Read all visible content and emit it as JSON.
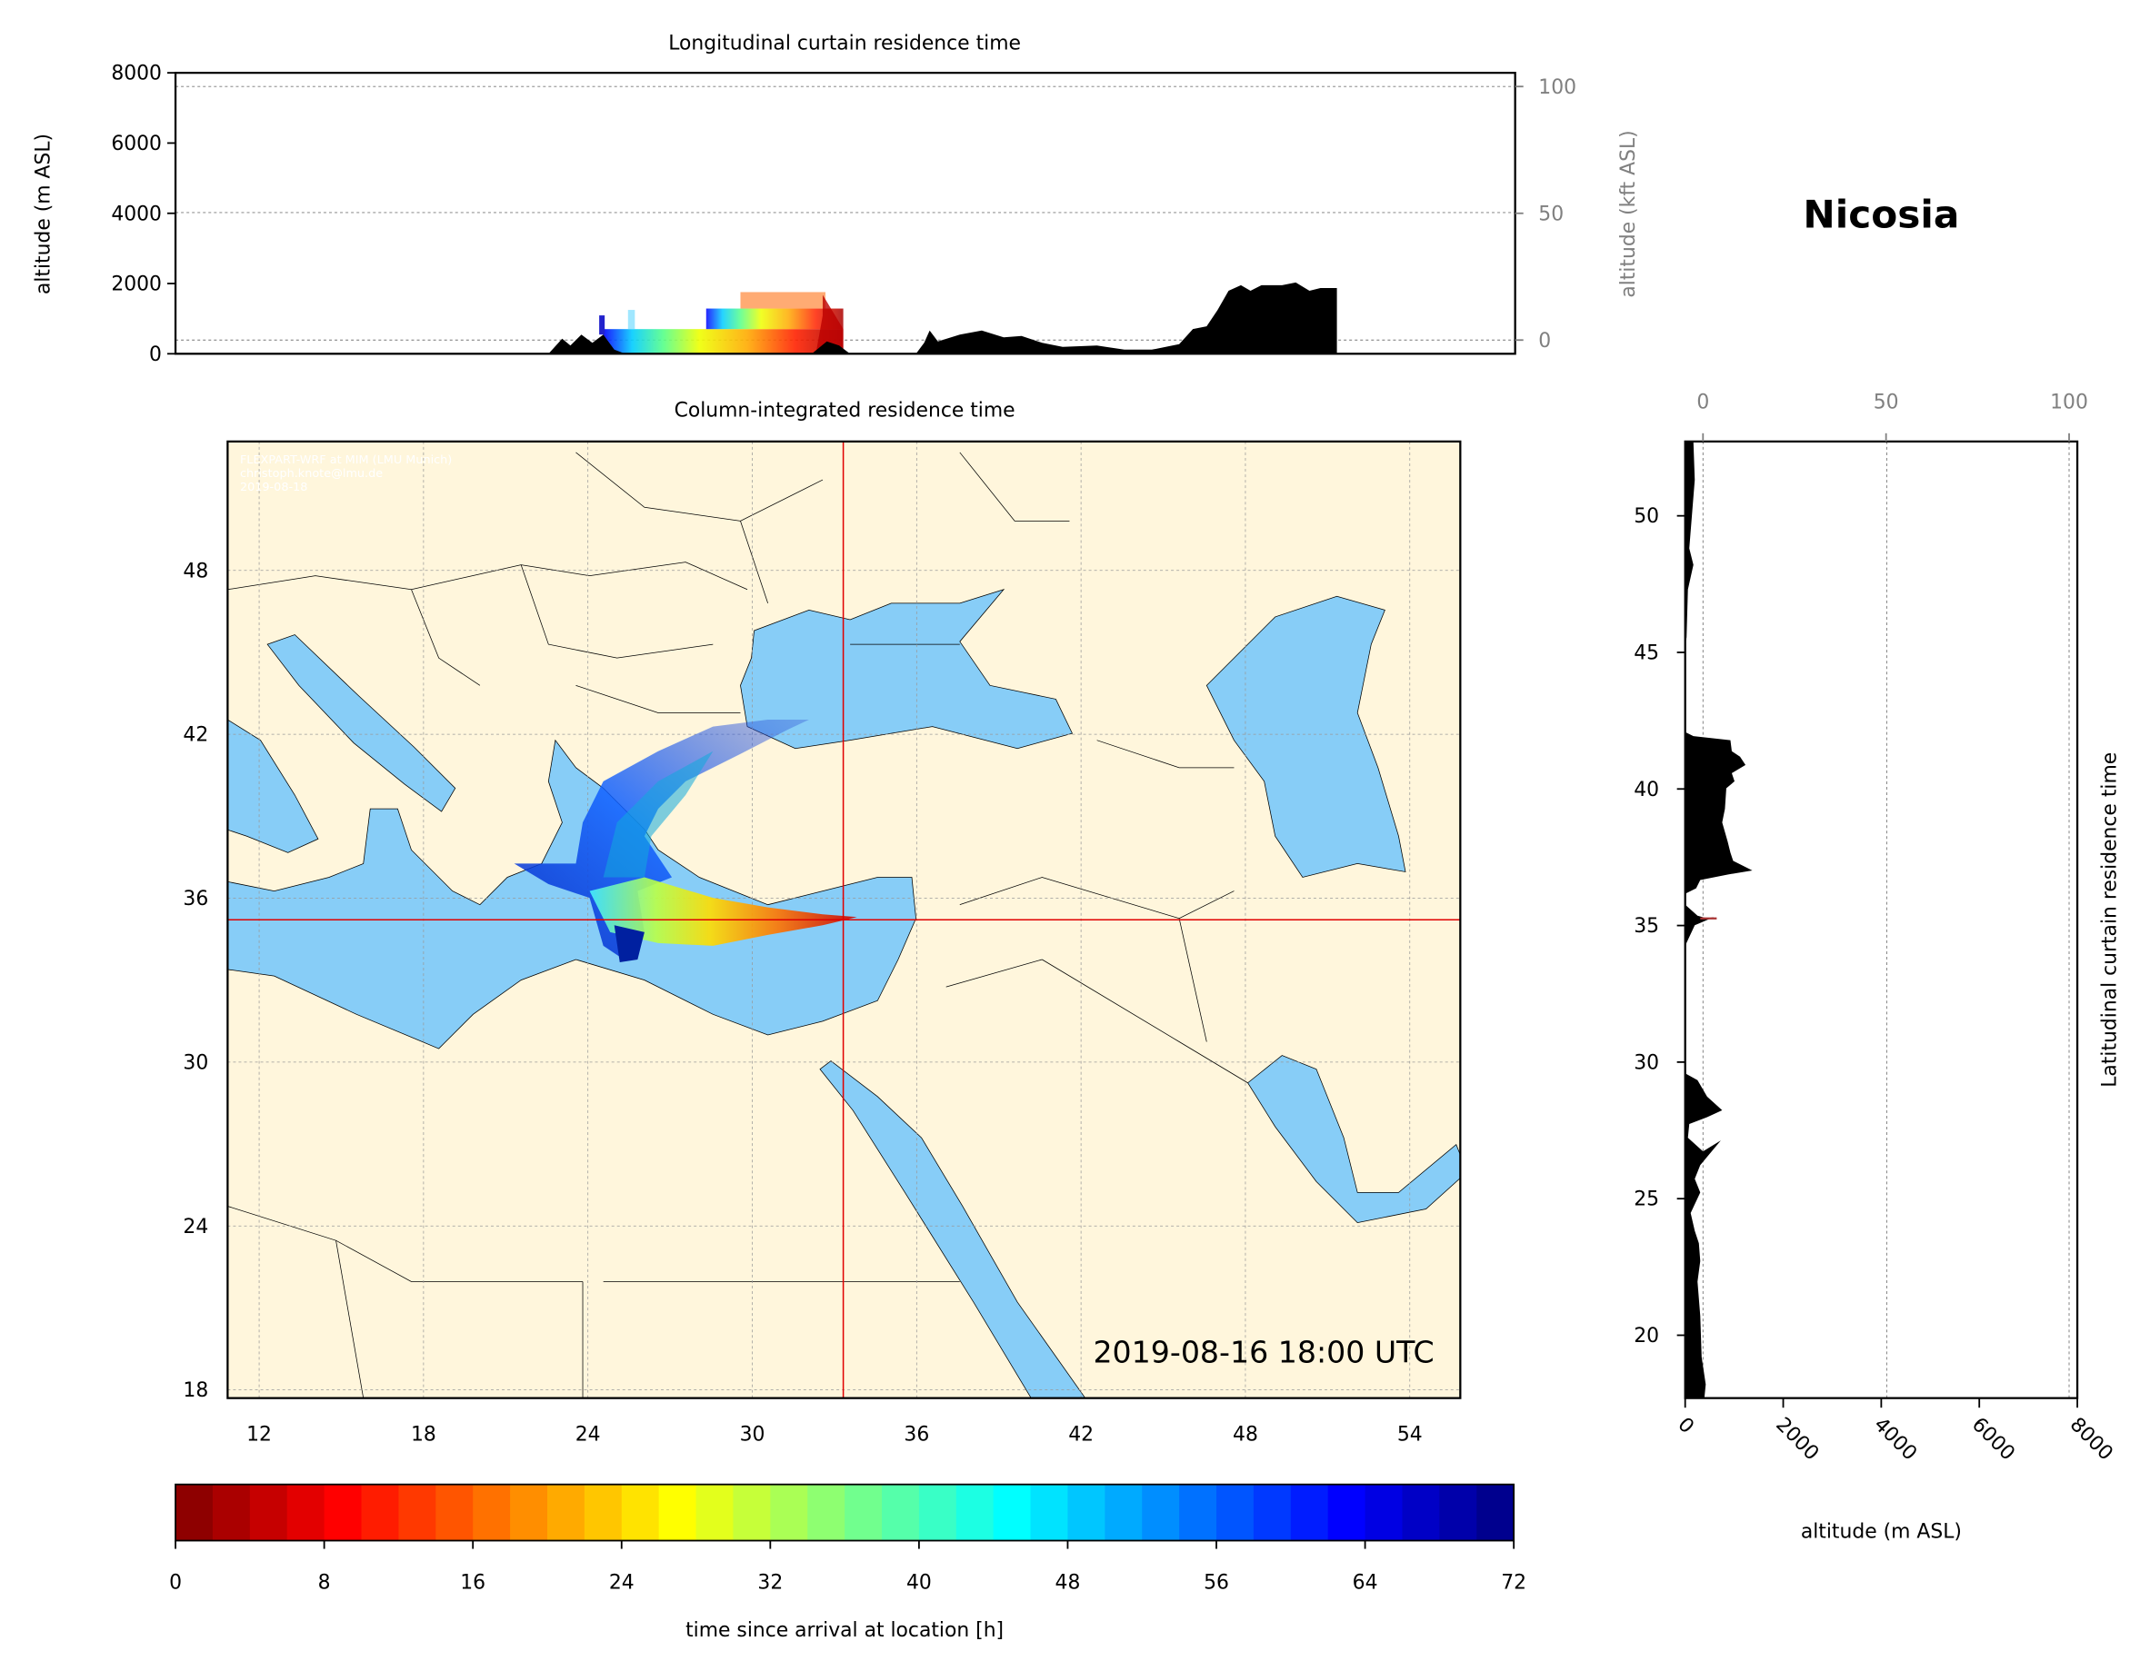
{
  "station": "Nicosia",
  "timestamp": "2019-08-16 18:00 UTC",
  "attribution": [
    "FLEXPART-WRF at MIM (LMU Munich)",
    "christoph.knote@lmu.de",
    "2019-08-18"
  ],
  "colors": {
    "land": "#fff6dc",
    "sea": "#87cdf7",
    "terrain": "#000000",
    "crosshair": "#e00000"
  },
  "chart_data": [
    {
      "type": "area",
      "title": "Longitudinal curtain residence time",
      "ylabel": "altitude (m ASL)",
      "ylabel_right": "altitude (kft ASL)",
      "ylim": [
        0,
        8000
      ],
      "yticks": [
        "0",
        "2000",
        "4000",
        "6000",
        "8000"
      ],
      "yticks_right": [
        "0",
        "50",
        "100"
      ],
      "grid": true
    },
    {
      "type": "heatmap",
      "title": "Column-integrated residence time",
      "xlim": [
        10.85,
        55.8
      ],
      "ylim": [
        17.7,
        52.7
      ],
      "xticks": [
        "12",
        "18",
        "24",
        "30",
        "36",
        "42",
        "48",
        "54"
      ],
      "yticks": [
        "18",
        "24",
        "30",
        "36",
        "42",
        "48"
      ],
      "crosshair": {
        "lon": 33.4,
        "lat": 35.2
      },
      "grid": true
    },
    {
      "type": "area",
      "ylabel_right": "Latitudinal curtain residence time",
      "xlabel": "altitude (m ASL)",
      "xlim": [
        0,
        8000
      ],
      "xticks": [
        "0",
        "2000",
        "4000",
        "6000",
        "8000"
      ],
      "xticks_top": [
        "0",
        "50",
        "100"
      ],
      "yticks": [
        "20",
        "25",
        "30",
        "35",
        "40",
        "45",
        "50"
      ],
      "grid": true
    },
    {
      "type": "colorbar",
      "label": "time since arrival at location [h]",
      "range": [
        0,
        72
      ],
      "ticks": [
        "0",
        "8",
        "16",
        "24",
        "32",
        "40",
        "48",
        "56",
        "64",
        "72"
      ],
      "colormap": "jet (reversed)"
    }
  ]
}
